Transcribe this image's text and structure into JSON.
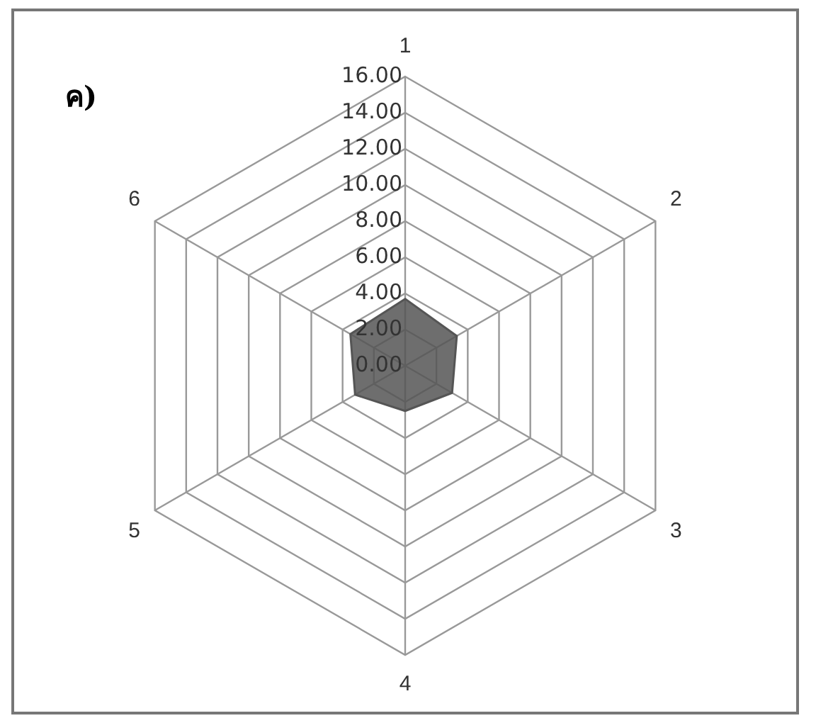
{
  "chart_data": {
    "type": "radar",
    "title": "ค)",
    "categories": [
      "1",
      "2",
      "3",
      "4",
      "5",
      "6"
    ],
    "series": [
      {
        "color": "#555555",
        "values": [
          3.7,
          3.3,
          3.0,
          2.5,
          3.2,
          3.5
        ]
      }
    ],
    "ylim": [
      0,
      16
    ],
    "yticks": [
      {
        "value": 0,
        "label": "0.00"
      },
      {
        "value": 2,
        "label": "2.00"
      },
      {
        "value": 4,
        "label": "4.00"
      },
      {
        "value": 6,
        "label": "6.00"
      },
      {
        "value": 8,
        "label": "8.00"
      },
      {
        "value": 10,
        "label": "10.00"
      },
      {
        "value": 12,
        "label": "12.00"
      },
      {
        "value": 14,
        "label": "14.00"
      },
      {
        "value": 16,
        "label": "16.00"
      }
    ],
    "grid": true,
    "legend": false,
    "marker": "none"
  }
}
